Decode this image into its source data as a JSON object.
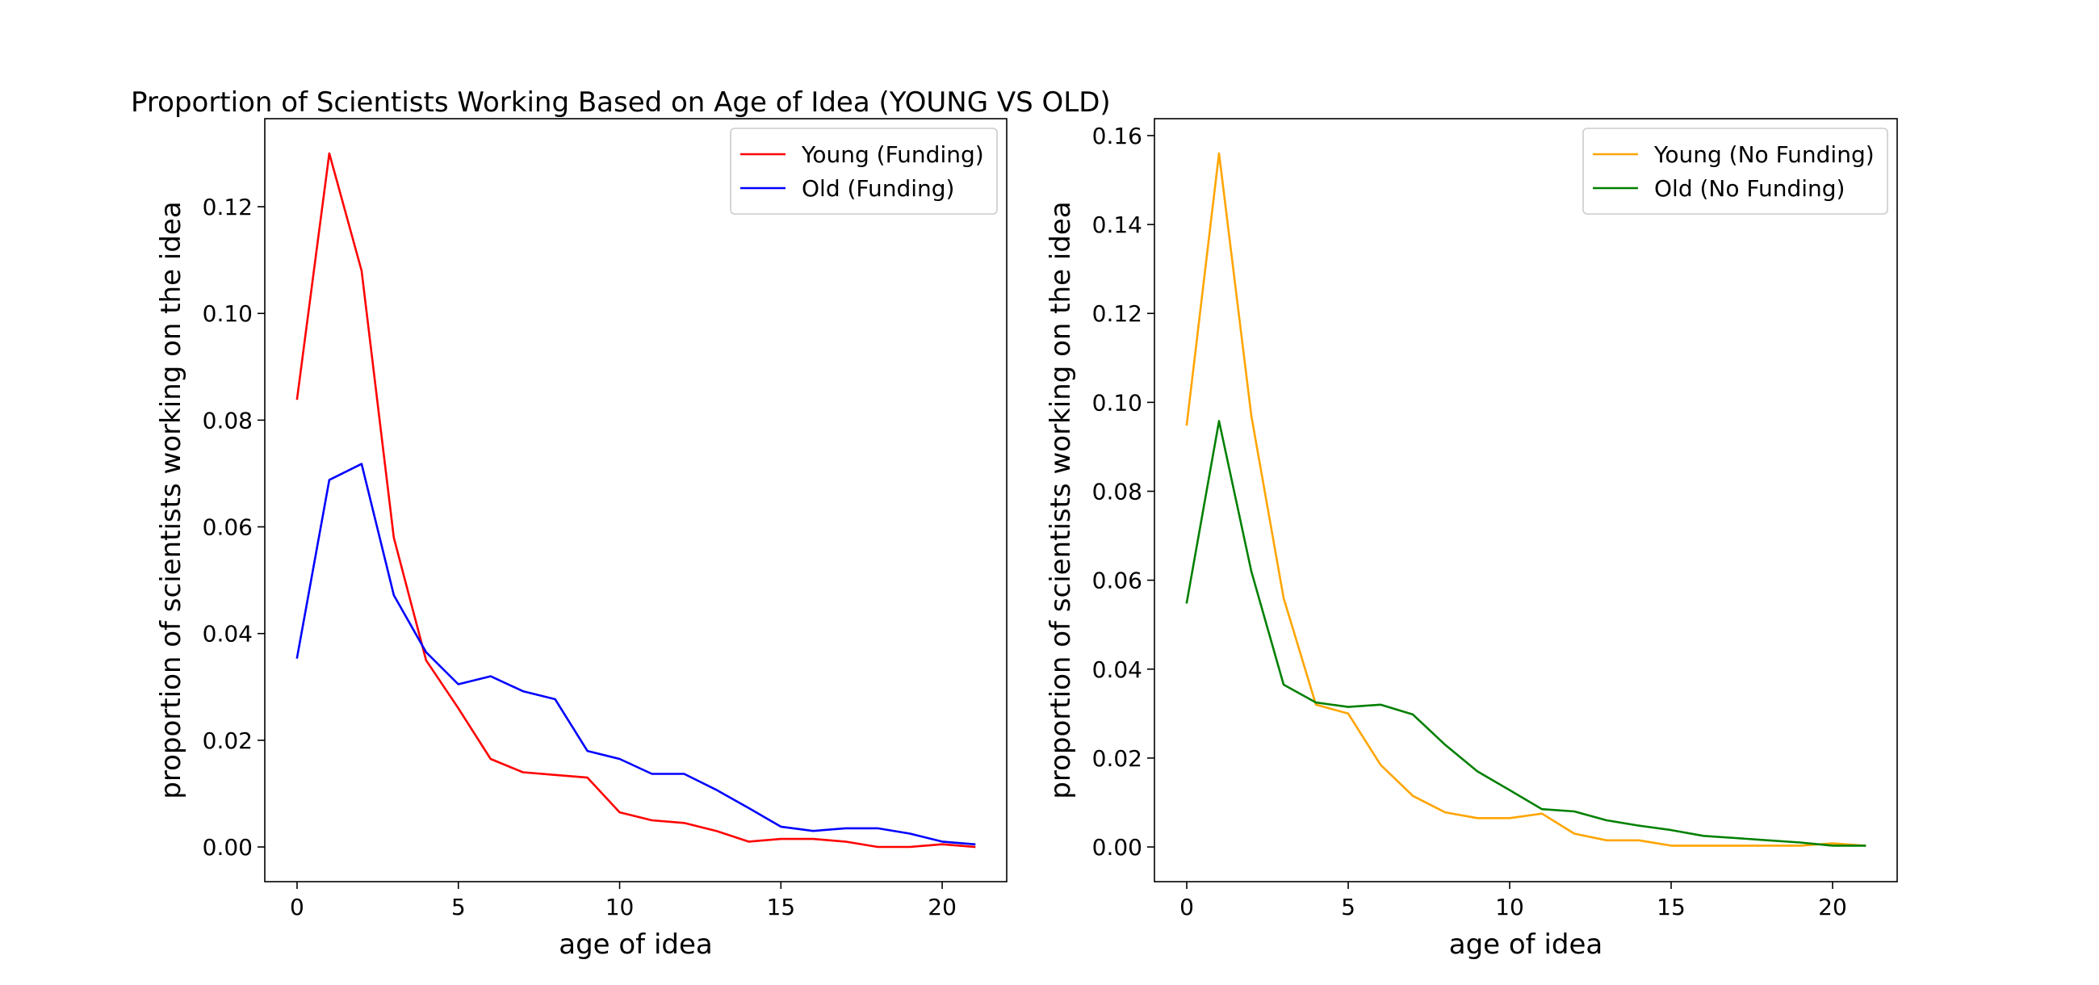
{
  "figure": {
    "title": "Proportion of Scientists Working Based on Age of Idea (YOUNG VS OLD)"
  },
  "chart_data": [
    {
      "type": "line",
      "title": "Proportion of Scientists Working Based on Age of Idea (YOUNG VS OLD)",
      "xlabel": "age of idea",
      "ylabel": "proportion of scientists working on the idea",
      "xlim": [
        -1,
        22
      ],
      "ylim": [
        -0.0065,
        0.1365
      ],
      "xticks": [
        0,
        5,
        10,
        15,
        20
      ],
      "xtick_labels": [
        "0",
        "5",
        "10",
        "15",
        "20"
      ],
      "yticks": [
        0.0,
        0.02,
        0.04,
        0.06,
        0.08,
        0.1,
        0.12
      ],
      "ytick_labels": [
        "0.00",
        "0.02",
        "0.04",
        "0.06",
        "0.08",
        "0.10",
        "0.12"
      ],
      "grid": false,
      "legend_position": "top-right",
      "x": [
        0,
        1,
        2,
        3,
        4,
        5,
        6,
        7,
        8,
        9,
        10,
        11,
        12,
        13,
        14,
        15,
        16,
        17,
        18,
        19,
        20,
        21
      ],
      "series": [
        {
          "name": "Young (Funding)",
          "color": "#ff0000",
          "values": [
            0.084,
            0.13,
            0.108,
            0.058,
            0.035,
            0.026,
            0.0165,
            0.014,
            0.0135,
            0.013,
            0.0065,
            0.005,
            0.0045,
            0.003,
            0.001,
            0.0015,
            0.0015,
            0.001,
            0.0,
            0.0,
            0.0005,
            0.0
          ]
        },
        {
          "name": "Old (Funding)",
          "color": "#0000ff",
          "values": [
            0.0355,
            0.0688,
            0.0718,
            0.0472,
            0.0365,
            0.0305,
            0.032,
            0.0292,
            0.0277,
            0.018,
            0.0165,
            0.0137,
            0.0137,
            0.0107,
            0.0073,
            0.0038,
            0.003,
            0.0035,
            0.0035,
            0.0025,
            0.001,
            0.0005
          ]
        }
      ]
    },
    {
      "type": "line",
      "title": "",
      "xlabel": "age of idea",
      "ylabel": "proportion of scientists working on the idea",
      "xlim": [
        -1,
        22
      ],
      "ylim": [
        -0.0078,
        0.1638
      ],
      "xticks": [
        0,
        5,
        10,
        15,
        20
      ],
      "xtick_labels": [
        "0",
        "5",
        "10",
        "15",
        "20"
      ],
      "yticks": [
        0.0,
        0.02,
        0.04,
        0.06,
        0.08,
        0.1,
        0.12,
        0.14,
        0.16
      ],
      "ytick_labels": [
        "0.00",
        "0.02",
        "0.04",
        "0.06",
        "0.08",
        "0.10",
        "0.12",
        "0.14",
        "0.16"
      ],
      "grid": false,
      "legend_position": "top-right",
      "x": [
        0,
        1,
        2,
        3,
        4,
        5,
        6,
        7,
        8,
        9,
        10,
        11,
        12,
        13,
        14,
        15,
        16,
        17,
        18,
        19,
        20,
        21
      ],
      "series": [
        {
          "name": "Young (No Funding)",
          "color": "#ffa500",
          "values": [
            0.095,
            0.156,
            0.097,
            0.056,
            0.032,
            0.03,
            0.0185,
            0.0115,
            0.0078,
            0.0065,
            0.0065,
            0.0075,
            0.003,
            0.0015,
            0.0015,
            0.0003,
            0.0003,
            0.0003,
            0.0003,
            0.0003,
            0.0008,
            0.0003
          ]
        },
        {
          "name": "Old (No Funding)",
          "color": "#008000",
          "values": [
            0.055,
            0.0958,
            0.062,
            0.0365,
            0.0325,
            0.0315,
            0.032,
            0.0298,
            0.023,
            0.017,
            0.0128,
            0.0085,
            0.008,
            0.006,
            0.0048,
            0.0038,
            0.0025,
            0.002,
            0.0015,
            0.001,
            0.0003,
            0.0003
          ]
        }
      ]
    }
  ]
}
